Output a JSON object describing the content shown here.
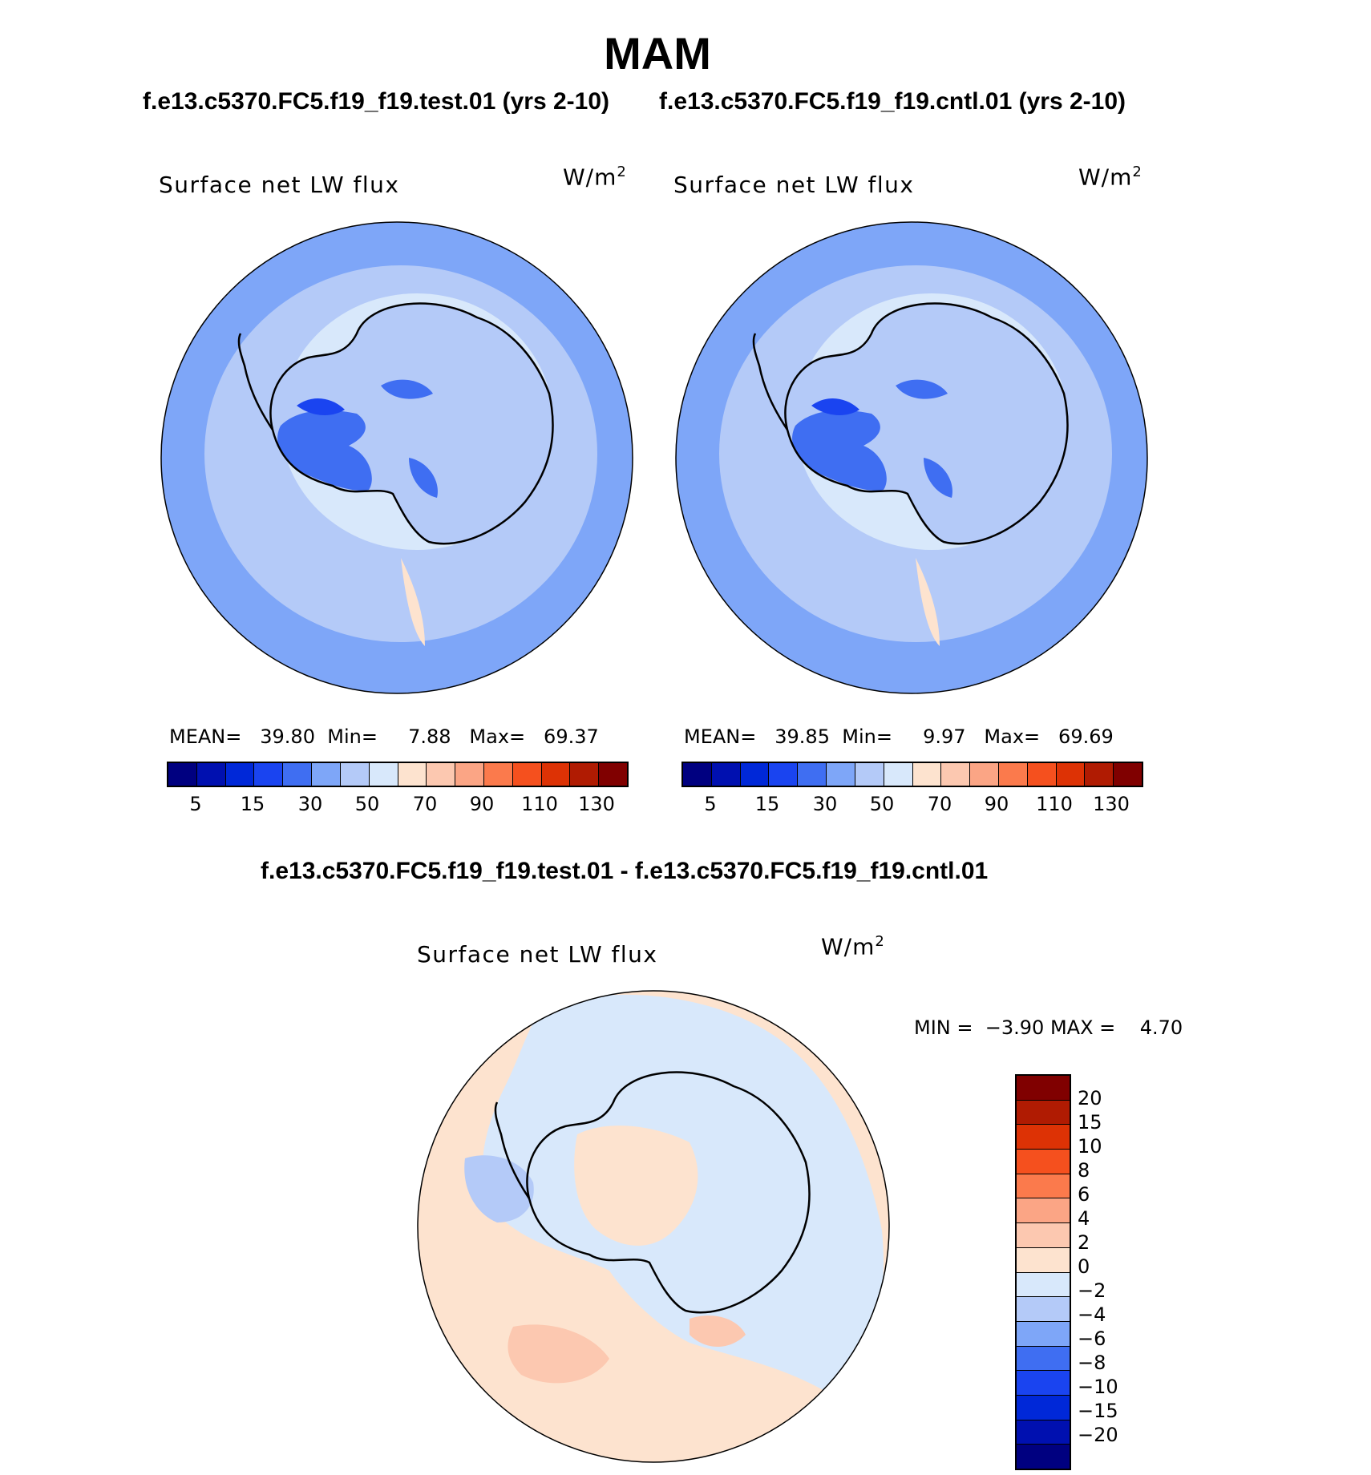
{
  "header": {
    "title": "MAM",
    "subtitle_left": "f.e13.c5370.FC5.f19_f19.test.01 (yrs 2-10)",
    "subtitle_right": "f.e13.c5370.FC5.f19_f19.cntl.01 (yrs 2-10)",
    "diff_title": "f.e13.c5370.FC5.f19_f19.test.01 - f.e13.c5370.FC5.f19_f19.cntl.01"
  },
  "panels": {
    "test": {
      "title": "Surface net LW flux",
      "unit_base": "W/m",
      "unit_sup": "2",
      "mean_label": "MEAN=",
      "mean": "39.80",
      "min_label": "Min=",
      "min": "7.88",
      "max_label": "Max=",
      "max": "69.37"
    },
    "cntl": {
      "title": "Surface net LW flux",
      "unit_base": "W/m",
      "unit_sup": "2",
      "mean_label": "MEAN=",
      "mean": "39.85",
      "min_label": "Min=",
      "min": "9.97",
      "max_label": "Max=",
      "max": "69.69"
    },
    "diff": {
      "title": "Surface net LW flux",
      "unit_base": "W/m",
      "unit_sup": "2",
      "min_label": "MIN =",
      "min": "−3.90",
      "max_label": "MAX =",
      "max": "4.70"
    }
  },
  "colorbar_main": {
    "colors": [
      "#000080",
      "#0010b0",
      "#0028d8",
      "#1a44f0",
      "#3f6ef2",
      "#7ea6f8",
      "#b4caf8",
      "#d8e8fb",
      "#fde3cf",
      "#fcc8b0",
      "#fba585",
      "#fb7a4c",
      "#f5501e",
      "#dd3205",
      "#b01b02",
      "#800000"
    ],
    "tick_labels": [
      "5",
      "15",
      "30",
      "50",
      "70",
      "90",
      "110",
      "130"
    ]
  },
  "colorbar_diff": {
    "colors": [
      "#800000",
      "#b01b02",
      "#dd3205",
      "#f5501e",
      "#fb7a4c",
      "#fba585",
      "#fcc8b0",
      "#fde3cf",
      "#d8e8fb",
      "#b4caf8",
      "#7ea6f8",
      "#3f6ef2",
      "#1a44f0",
      "#0028d8",
      "#0010b0",
      "#000080"
    ],
    "tick_labels": [
      "20",
      "15",
      "10",
      "8",
      "6",
      "4",
      "2",
      "0",
      "−2",
      "−4",
      "−6",
      "−8",
      "−10",
      "−15",
      "−20"
    ]
  },
  "map_fill": {
    "ocean_outer": "#7ea6f8",
    "ocean_mid": "#b4caf8",
    "ocean_inner": "#d8e8fb",
    "land": "#b4caf8",
    "land_dark": "#3f6ef2",
    "land_darker": "#1a44f0",
    "warm": "#fde3cf",
    "diff_warm": "#fde3cf",
    "diff_warm2": "#fcc8b0",
    "diff_cool": "#d8e8fb",
    "diff_cool2": "#b4caf8"
  }
}
